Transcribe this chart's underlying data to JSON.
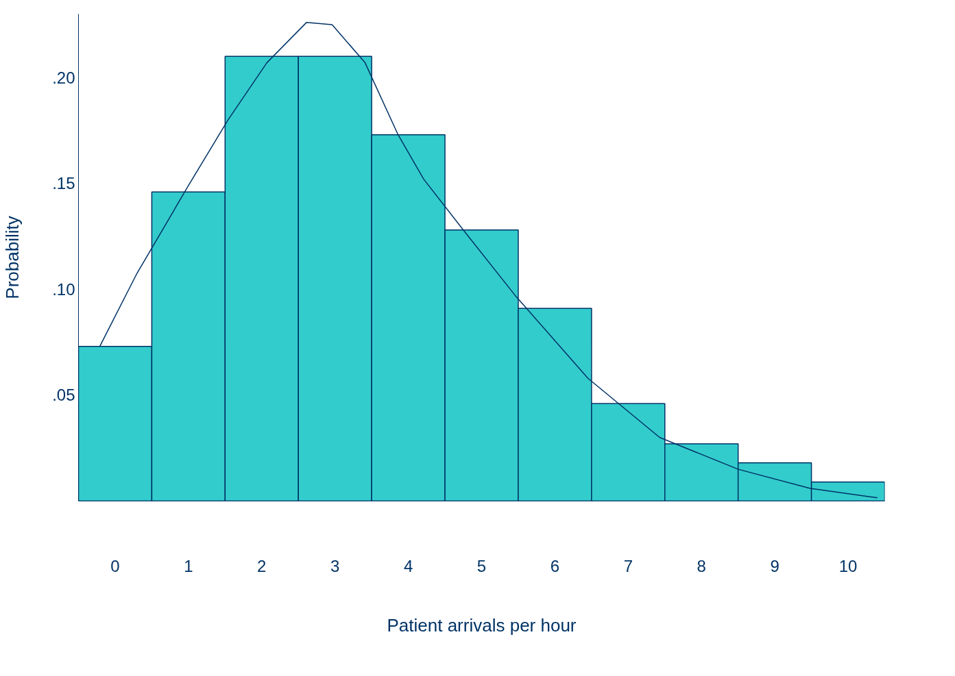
{
  "chart_data": {
    "type": "bar",
    "xlabel": "Patient arrivals per hour",
    "ylabel": "Probability",
    "x": [
      0,
      1,
      2,
      3,
      4,
      5,
      6,
      7,
      8,
      9,
      10
    ],
    "series": [
      {
        "color": "#33cccc",
        "values": [
          0.073,
          0.146,
          0.21,
          0.21,
          0.173,
          0.128,
          0.091,
          0.046,
          0.027,
          0.018,
          0.009
        ]
      },
      {
        "type": "line",
        "color": "#003366",
        "x": [
          -0.21,
          0.29,
          1.0,
          1.54,
          2.07,
          2.61,
          2.96,
          3.41,
          3.86,
          4.21,
          4.75,
          5.46,
          6.45,
          7.43,
          8.5,
          9.48,
          10.4
        ],
        "values": [
          0.073,
          0.107,
          0.149,
          0.18,
          0.207,
          0.226,
          0.225,
          0.207,
          0.173,
          0.152,
          0.128,
          0.097,
          0.058,
          0.03,
          0.015,
          0.006,
          0.0015
        ]
      }
    ],
    "xlim": [
      -0.5,
      10.5
    ],
    "xticks": [
      0,
      1,
      2,
      3,
      4,
      5,
      6,
      7,
      8,
      9,
      10
    ],
    "ylim": [
      0,
      0.23
    ],
    "yticks": [
      {
        "value": 0.05,
        "label": ".05"
      },
      {
        "value": 0.1,
        "label": ".10"
      },
      {
        "value": 0.15,
        "label": ".15"
      },
      {
        "value": 0.2,
        "label": ".20"
      }
    ],
    "grid": false
  }
}
